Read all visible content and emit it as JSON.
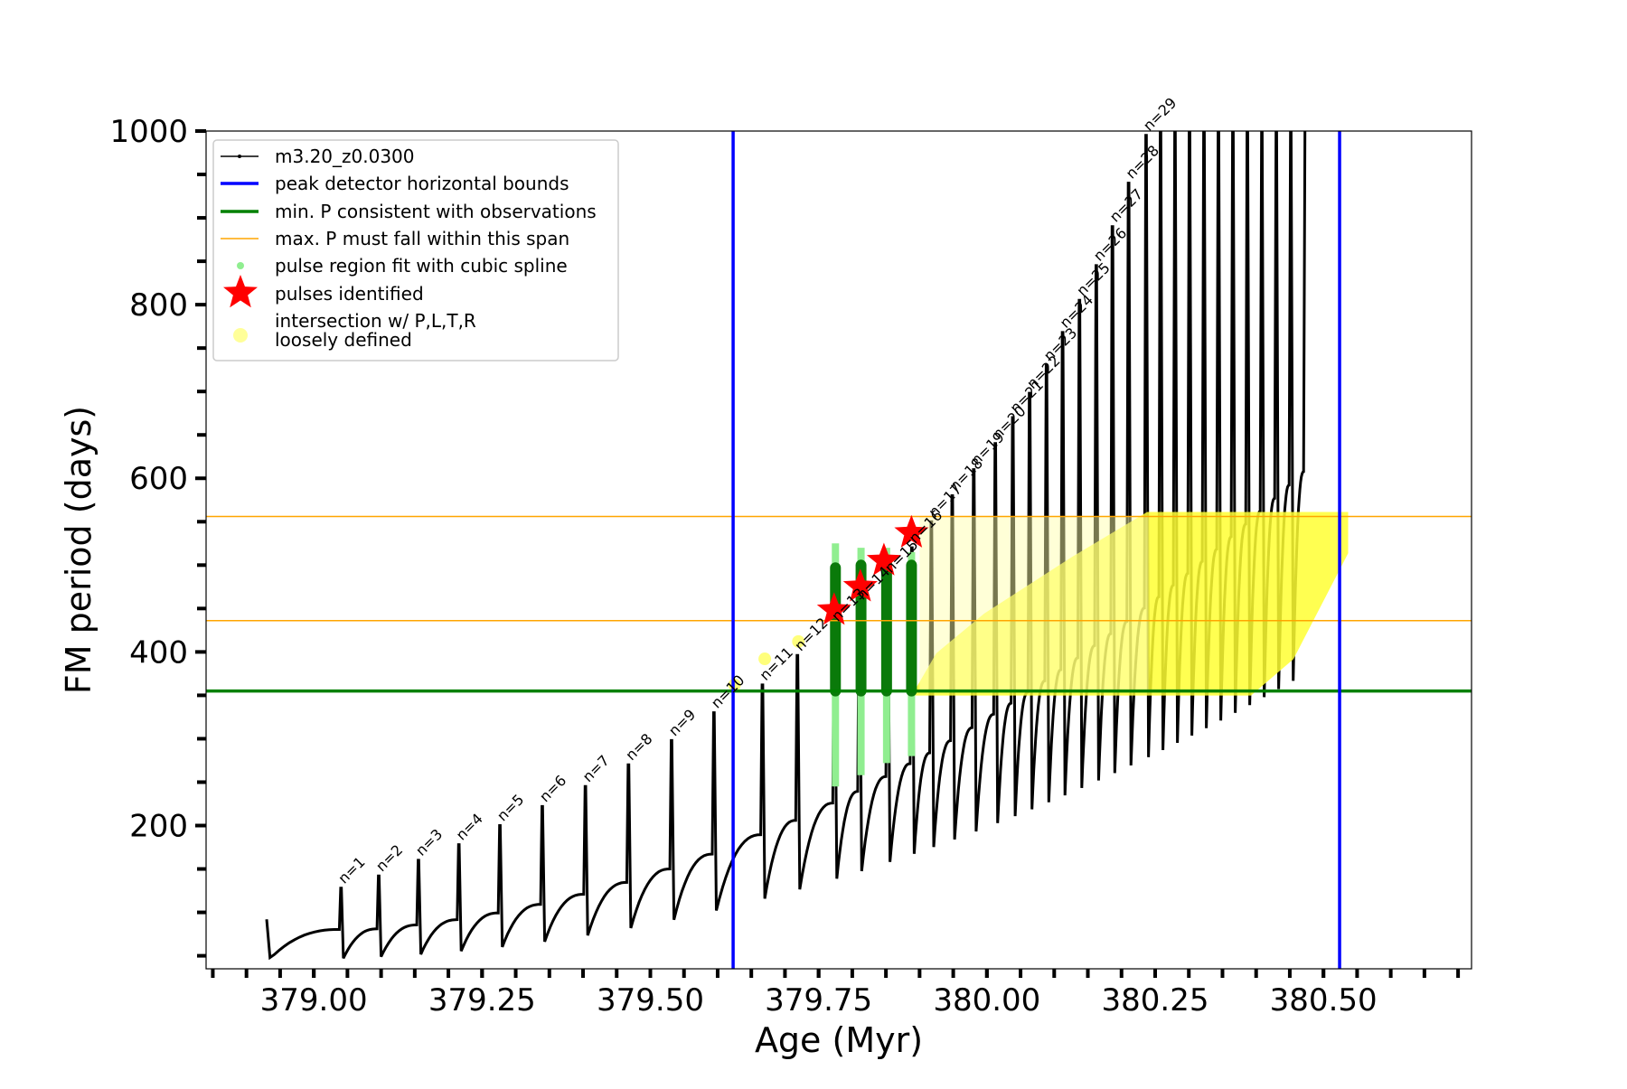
{
  "chart_data": {
    "type": "line",
    "title": "",
    "xlabel": "Age (Myr)",
    "ylabel": "FM period (days)",
    "xlim": [
      378.84,
      380.72
    ],
    "ylim": [
      35,
      1000
    ],
    "x_ticks": [
      379.0,
      379.25,
      379.5,
      379.75,
      380.0,
      380.25,
      380.5
    ],
    "x_tick_labels": [
      "379.00",
      "379.25",
      "379.50",
      "379.75",
      "380.00",
      "380.25",
      "380.50"
    ],
    "y_ticks": [
      200,
      400,
      600,
      800,
      1000
    ],
    "y_tick_labels": [
      "200",
      "400",
      "600",
      "800",
      "1000"
    ],
    "legend_position": "top-left",
    "legend": [
      {
        "label": "m3.20_z0.0300",
        "style": "line-dot",
        "color": "#000000"
      },
      {
        "label": "peak detector horizontal bounds",
        "style": "line",
        "color": "#0000ff"
      },
      {
        "label": "min. P consistent with observations",
        "style": "line",
        "color": "#008000"
      },
      {
        "label": "max. P must fall within this span",
        "style": "thin-line",
        "color": "#ffa500"
      },
      {
        "label": "pulse region fit with cubic spline",
        "style": "dot",
        "color": "#90ee90"
      },
      {
        "label": "pulses identified",
        "style": "star",
        "color": "#ff0000"
      },
      {
        "label": "intersection w/ P,L,T,R\nloosely defined",
        "style": "circle",
        "color": "#ffff99"
      }
    ],
    "vertical_bounds": [
      379.623,
      380.524
    ],
    "min_period_line": 355,
    "max_period_span": [
      436,
      556
    ],
    "pulse_peaks": [
      {
        "n": 1,
        "age": 379.04,
        "peak": 128
      },
      {
        "n": 2,
        "age": 379.096,
        "peak": 142
      },
      {
        "n": 3,
        "age": 379.155,
        "peak": 160
      },
      {
        "n": 4,
        "age": 379.215,
        "peak": 178
      },
      {
        "n": 5,
        "age": 379.276,
        "peak": 200
      },
      {
        "n": 6,
        "age": 379.339,
        "peak": 222
      },
      {
        "n": 7,
        "age": 379.403,
        "peak": 245
      },
      {
        "n": 8,
        "age": 379.467,
        "peak": 270
      },
      {
        "n": 9,
        "age": 379.531,
        "peak": 298
      },
      {
        "n": 10,
        "age": 379.594,
        "peak": 330
      },
      {
        "n": 11,
        "age": 379.666,
        "peak": 362
      },
      {
        "n": 12,
        "age": 379.718,
        "peak": 396
      },
      {
        "n": 13,
        "age": 379.773,
        "peak": 430
      },
      {
        "n": 14,
        "age": 379.81,
        "peak": 455
      },
      {
        "n": 15,
        "age": 379.852,
        "peak": 486
      },
      {
        "n": 16,
        "age": 379.888,
        "peak": 520
      },
      {
        "n": 17,
        "age": 379.917,
        "peak": 550
      },
      {
        "n": 18,
        "age": 379.948,
        "peak": 580
      },
      {
        "n": 19,
        "age": 379.98,
        "peak": 610
      },
      {
        "n": 20,
        "age": 380.012,
        "peak": 640
      },
      {
        "n": 21,
        "age": 380.038,
        "peak": 670
      },
      {
        "n": 22,
        "age": 380.063,
        "peak": 698
      },
      {
        "n": 23,
        "age": 380.088,
        "peak": 730
      },
      {
        "n": 24,
        "age": 380.112,
        "peak": 768
      },
      {
        "n": 25,
        "age": 380.137,
        "peak": 805
      },
      {
        "n": 26,
        "age": 380.162,
        "peak": 845
      },
      {
        "n": 27,
        "age": 380.186,
        "peak": 890
      },
      {
        "n": 28,
        "age": 380.21,
        "peak": 940
      },
      {
        "n": 29,
        "age": 380.236,
        "peak": 995
      }
    ],
    "pulse_labels": [
      "n=1",
      "n=2",
      "n=3",
      "n=4",
      "n=5",
      "n=6",
      "n=7",
      "n=8",
      "n=9",
      "n=10",
      "n=11",
      "n=12",
      "n=13",
      "n=14",
      "n=15",
      "n=16",
      "n=17",
      "n=18",
      "n=19",
      "n=20",
      "n=21",
      "n=22",
      "n=23",
      "n=24",
      "n=25",
      "n=26",
      "n=27",
      "n=28",
      "n=29"
    ],
    "identified_pulses": [
      {
        "n": 13,
        "age": 379.773,
        "period": 448
      },
      {
        "n": 14,
        "age": 379.812,
        "period": 475
      },
      {
        "n": 15,
        "age": 379.847,
        "period": 505
      },
      {
        "n": 16,
        "age": 379.888,
        "period": 537
      }
    ],
    "spline_regions": [
      {
        "age": 379.775,
        "low": 245,
        "high": 525
      },
      {
        "age": 379.813,
        "low": 258,
        "high": 520
      },
      {
        "age": 379.851,
        "low": 272,
        "high": 520
      },
      {
        "age": 379.888,
        "low": 280,
        "high": 515
      }
    ],
    "green_segments": [
      {
        "age": 379.775,
        "low": 355,
        "high": 497
      },
      {
        "age": 379.813,
        "low": 355,
        "high": 500
      },
      {
        "age": 379.851,
        "low": 355,
        "high": 505
      },
      {
        "age": 379.888,
        "low": 355,
        "high": 500
      }
    ]
  }
}
